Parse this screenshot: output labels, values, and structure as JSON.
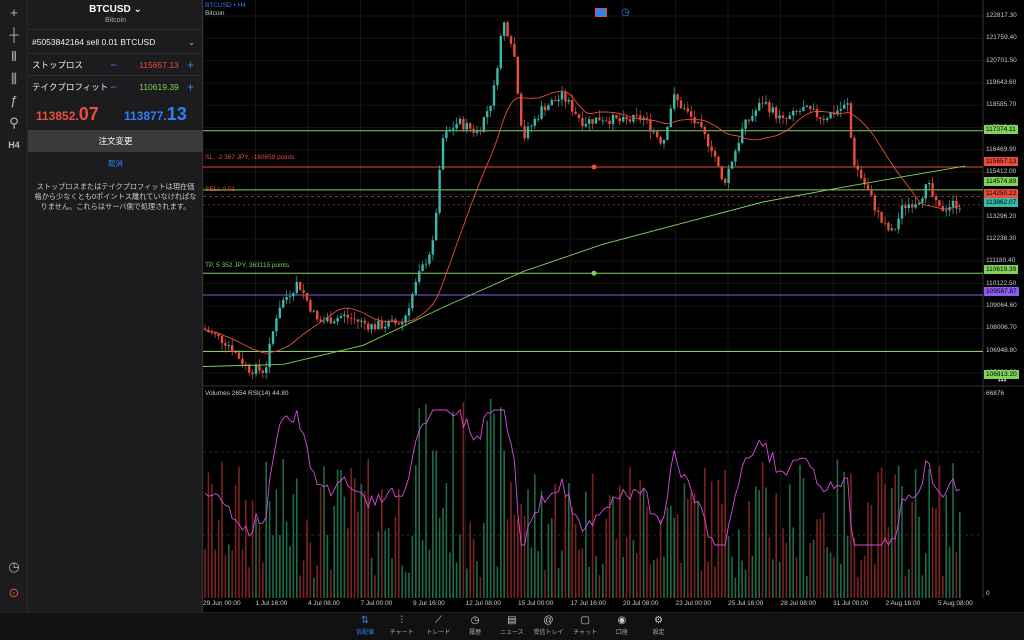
{
  "panel": {
    "symbol": "BTCUSD ⌄",
    "symbol_desc": "Bitcoin",
    "order_title": "#5053842164 sell 0.01 BTCUSD",
    "sl_label": "ストップロス",
    "sl_value": "115657.13",
    "tp_label": "テイクプロフィット",
    "tp_value": "110619.39",
    "minus": "−",
    "plus": "+",
    "bid_main": "113852.",
    "bid_big": "07",
    "ask_main": "113877.",
    "ask_big": "13",
    "modify_label": "注文変更",
    "cancel_label": "取消",
    "note": "ストップロスまたはテイクプロフィットは現在価格から少なくとも0ポイントス離れていなければなりません。これらはサーバ側で処理されます。"
  },
  "chart": {
    "symbol_tf": "BTCUSD • H4",
    "desc": "Bitcoin",
    "sl_line": "SL, -2 367 JPY, -160659 points",
    "sell_line": "SELL 0.01",
    "tp_line": "TP, 5 352 JPY, 363115 points",
    "indicator_label": "Volumes 2654 RSI(14) 44.80",
    "more": "•••",
    "price_axis": [
      "122817.30",
      "121759.40",
      "120701.50",
      "119643.60",
      "118585.70",
      "117527.80",
      "116469.90",
      "115412.00",
      "114354.10",
      "113296.20",
      "112238.30",
      "111180.40",
      "110122.50",
      "109064.60",
      "108006.70",
      "106948.80",
      "105890.90"
    ],
    "tags": [
      {
        "text": "117374.11",
        "color": "#7fd35a"
      },
      {
        "text": "115657.13",
        "color": "#e84d3d"
      },
      {
        "text": "114574.89",
        "color": "#7fd35a"
      },
      {
        "text": "114250.22",
        "color": "#e84d3d"
      },
      {
        "text": "113862.07",
        "color": "#39b8a8"
      },
      {
        "text": "110619.39",
        "color": "#7fd35a"
      },
      {
        "text": "109587.87",
        "color": "#8a5cf0"
      },
      {
        "text": "106913.20",
        "color": "#7fd35a"
      }
    ],
    "volume_max": "66876",
    "volume_min": "0",
    "x_ticks": [
      "29 Jun 00:00",
      "1 Jul 16:00",
      "4 Jul 08:00",
      "7 Jul 00:00",
      "9 Jul 16:00",
      "12 Jul 08:00",
      "15 Jul 00:00",
      "17 Jul 16:00",
      "20 Jul 08:00",
      "23 Jul 00:00",
      "25 Jul 16:00",
      "28 Jul 08:00",
      "31 Jul 00:00",
      "2 Aug 16:00",
      "5 Aug 08:00"
    ],
    "colors": {
      "up": "#39b8a8",
      "down": "#e84d3d",
      "ma_fast": "#e84d3d",
      "ma_slow": "#7fd35a",
      "rsi": "#d94bd9",
      "purple": "#8a5cf0"
    }
  },
  "nav": [
    {
      "label": "気配値",
      "icon": "⇅",
      "active": true
    },
    {
      "label": "チャート",
      "icon": "⫶"
    },
    {
      "label": "トレード",
      "icon": "⟋"
    },
    {
      "label": "履歴",
      "icon": "◷"
    },
    {
      "label": "ニュース",
      "icon": "▤"
    },
    {
      "label": "受信トレイ",
      "icon": "@"
    },
    {
      "label": "チャット",
      "icon": "▢"
    },
    {
      "label": "口座",
      "icon": "◉"
    },
    {
      "label": "設定",
      "icon": "⚙"
    }
  ],
  "tools": [
    "+",
    "┼",
    "⫴",
    "⫼",
    "ƒ",
    "⚲",
    "H4"
  ]
}
